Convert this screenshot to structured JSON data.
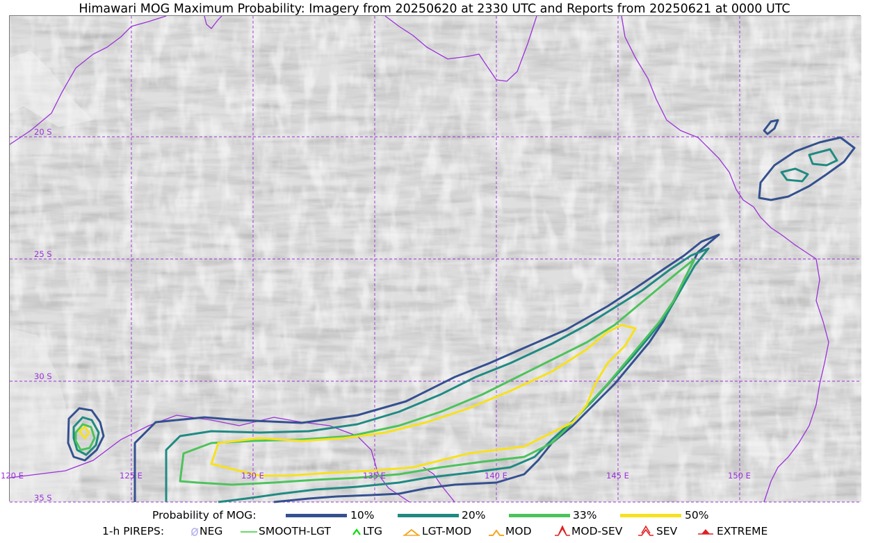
{
  "title": "Himawari MOG Maximum Probability: Imagery from 20250620 at 2330 UTC and Reports from 20250621 at 0000 UTC",
  "map": {
    "lat_labels": [
      "20 S",
      "25 S",
      "30 S",
      "35 S"
    ],
    "lon_labels": [
      "120 E",
      "125 E",
      "130 E",
      "135 E",
      "140 E",
      "145 E",
      "150 E"
    ],
    "grid_color": "#9b30d9",
    "coast_color": "#9b30d9"
  },
  "legend": {
    "probability_title": "Probability of MOG:",
    "probability_levels": [
      {
        "label": "10%",
        "color": "#33508f"
      },
      {
        "label": "20%",
        "color": "#1f8a82"
      },
      {
        "label": "33%",
        "color": "#4cc35b"
      },
      {
        "label": "50%",
        "color": "#f7e11e"
      }
    ],
    "pirep_title": "1-h PIREPS:",
    "pirep_items": [
      {
        "label": "NEG",
        "icon": "neg-icon",
        "color": "#b7b7f0"
      },
      {
        "label": "SMOOTH-LGT",
        "icon": "smooth-lgt-icon",
        "color": "#32cd32"
      },
      {
        "label": "LTG",
        "icon": "ltg-icon",
        "color": "#00dd00"
      },
      {
        "label": "LGT-MOD",
        "icon": "lgt-mod-icon",
        "color": "#f5a623"
      },
      {
        "label": "MOD",
        "icon": "mod-icon",
        "color": "#f5a623"
      },
      {
        "label": "MOD-SEV",
        "icon": "mod-sev-icon",
        "color": "#e02020"
      },
      {
        "label": "SEV",
        "icon": "sev-icon",
        "color": "#e02020"
      },
      {
        "label": "EXTREME",
        "icon": "extreme-icon",
        "color": "#e02020"
      }
    ]
  }
}
